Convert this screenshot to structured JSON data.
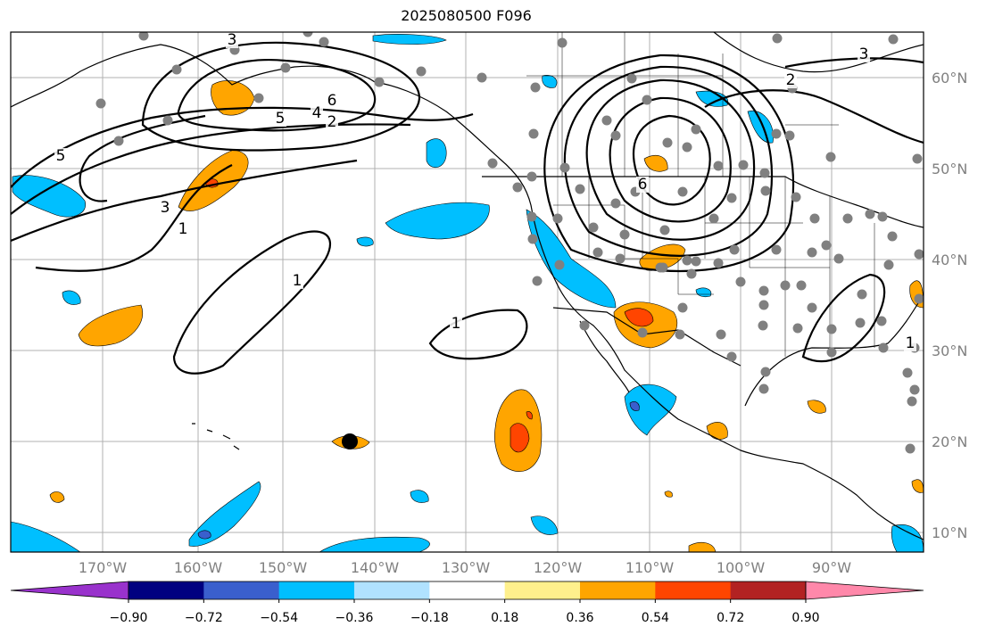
{
  "title": "2025080500 F096",
  "map": {
    "lat_labels": [
      "60°N",
      "50°N",
      "40°N",
      "30°N",
      "20°N",
      "10°N"
    ],
    "lon_labels": [
      "170°W",
      "160°W",
      "150°W",
      "140°W",
      "130°W",
      "120°W",
      "110°W",
      "100°W",
      "90°W"
    ],
    "contour_labels": [
      "1",
      "1",
      "1",
      "1",
      "2",
      "2",
      "3",
      "3",
      "3",
      "4",
      "5",
      "5",
      "6",
      "6"
    ],
    "contour_color": "#000000",
    "station_color": "#808080",
    "grid_color": "#b0b0b0"
  },
  "colorbar": {
    "tick_labels": [
      "−0.90",
      "−0.72",
      "−0.54",
      "−0.36",
      "−0.18",
      "0.18",
      "0.36",
      "0.54",
      "0.72",
      "0.90"
    ],
    "colors": [
      "#9932cc",
      "#000080",
      "#3a5fcd",
      "#00bfff",
      "#b0e2ff",
      "#ffffff",
      "#fff08c",
      "#ffa500",
      "#ff4500",
      "#b22222",
      "#ff88aa"
    ],
    "extend": "both"
  }
}
